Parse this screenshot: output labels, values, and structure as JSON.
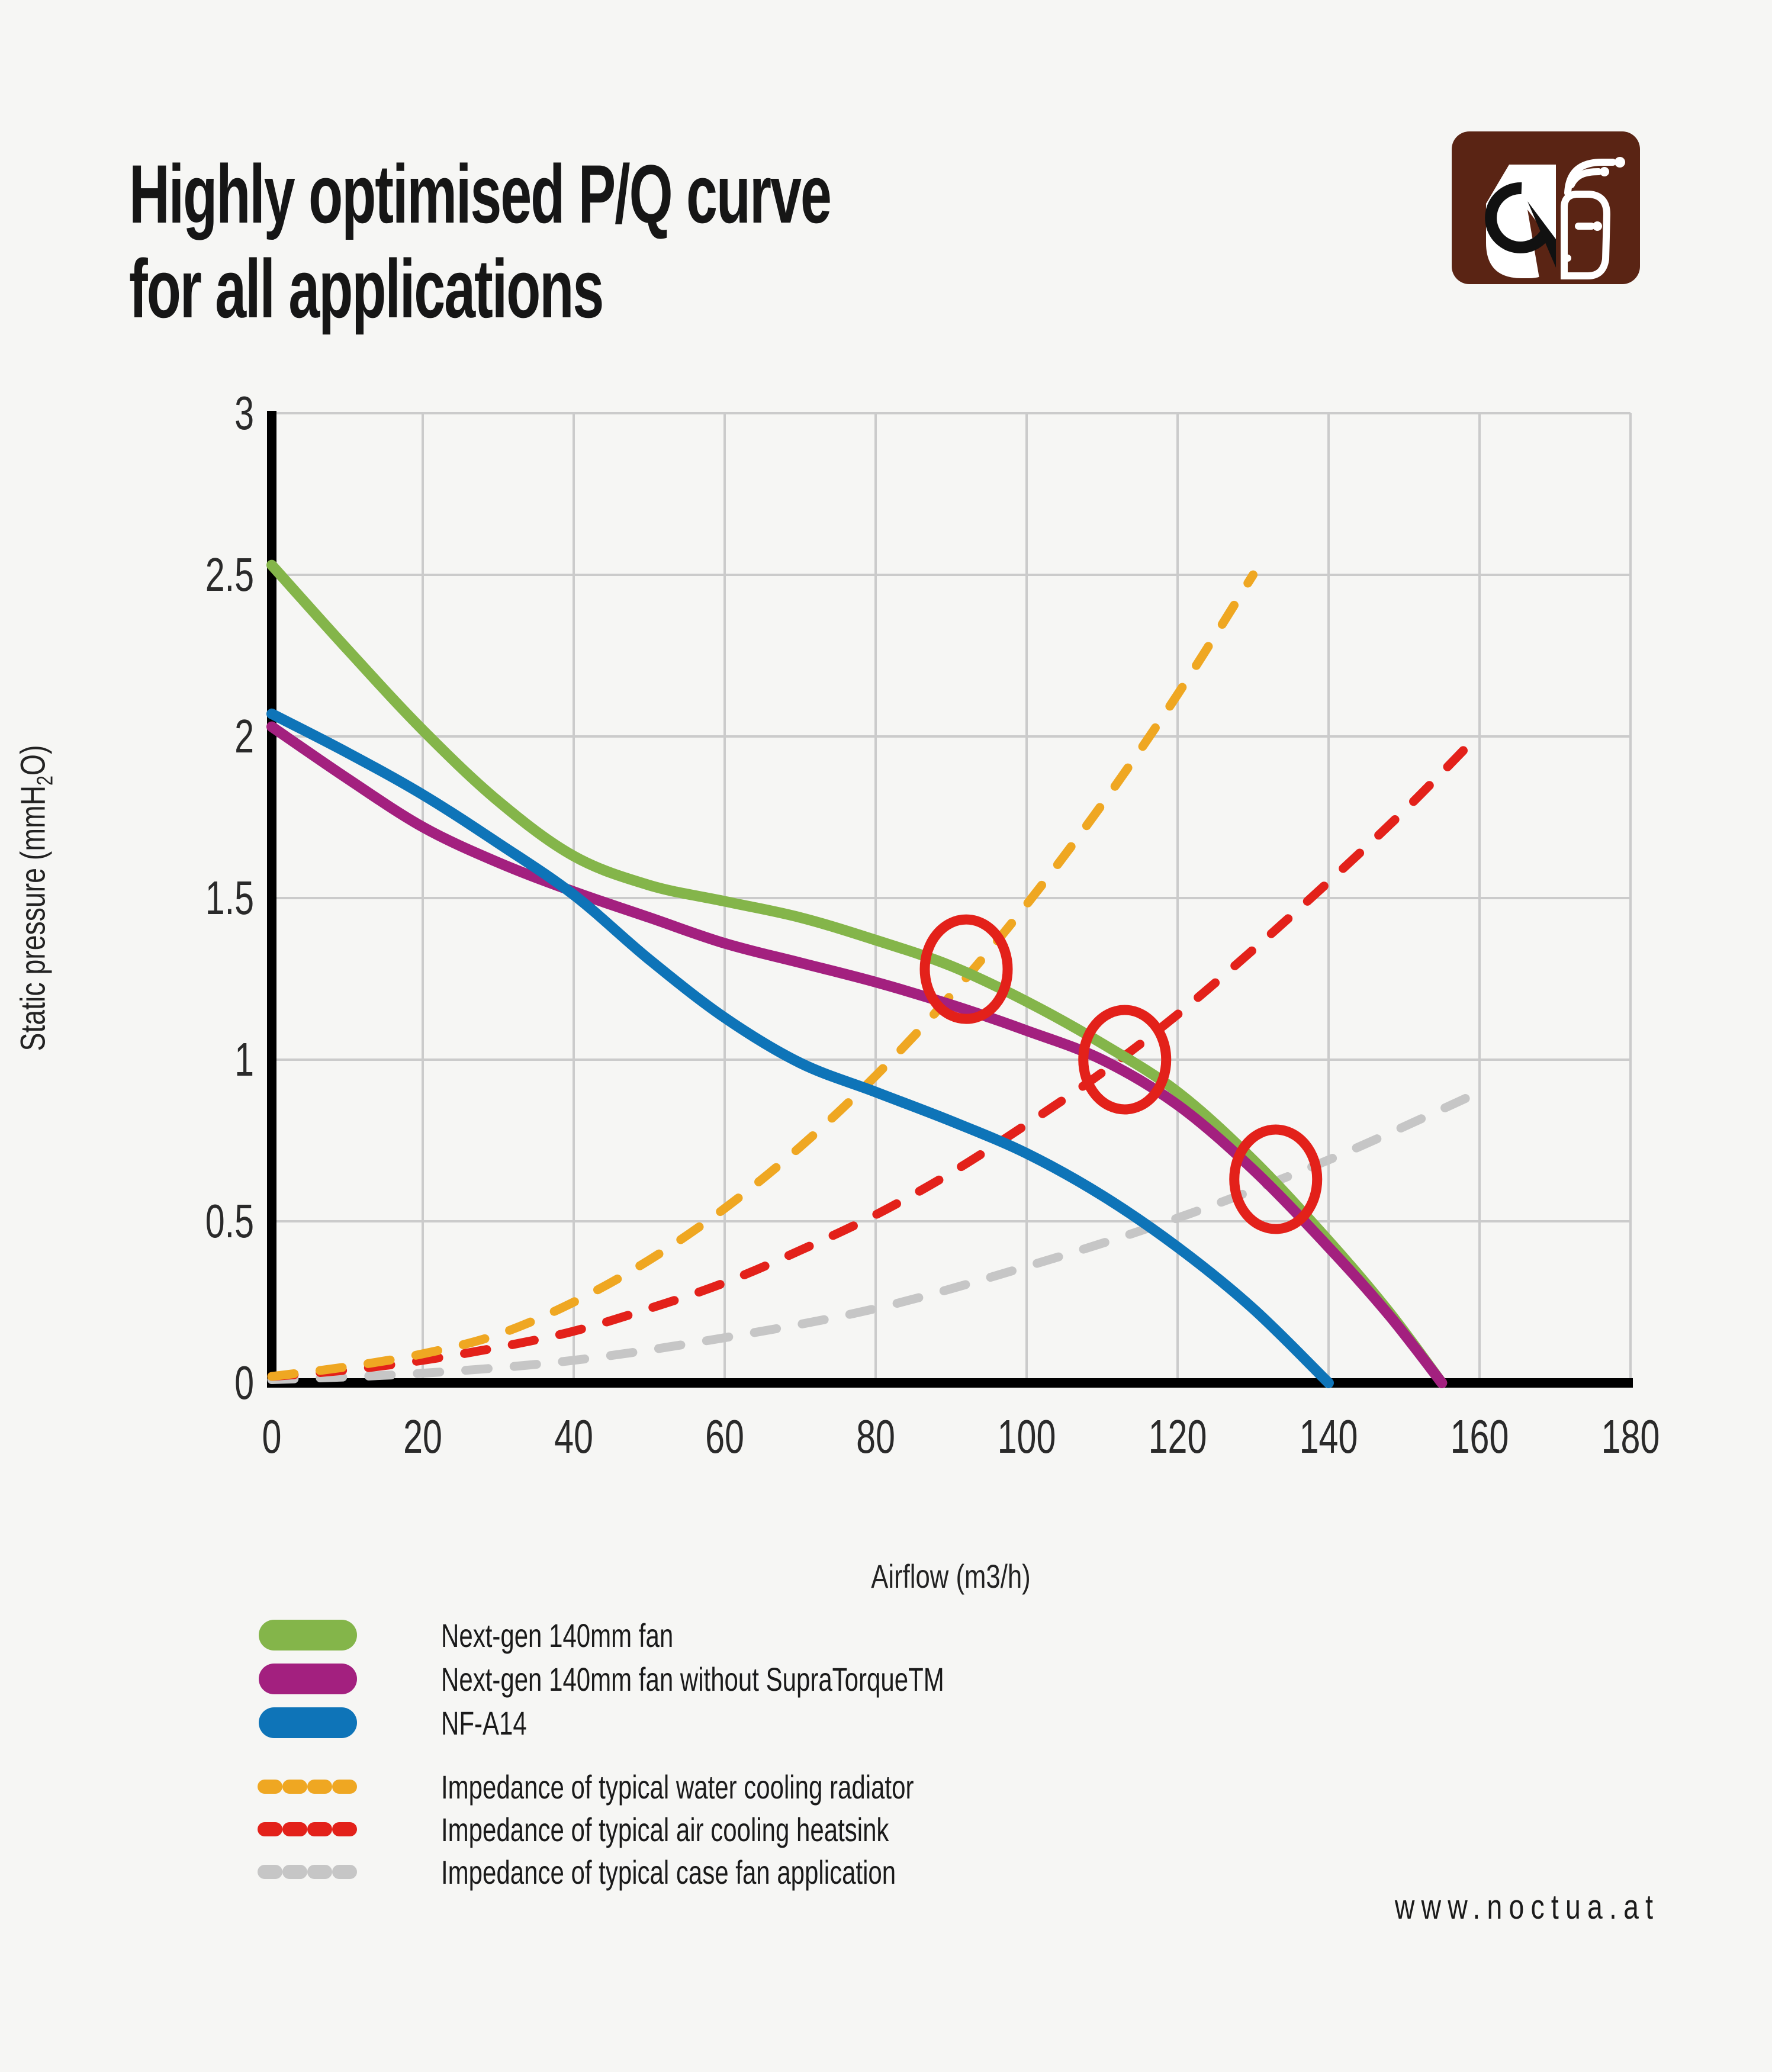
{
  "title": {
    "line1": "Highly optimised P/Q curve",
    "line2": "for all applications"
  },
  "logo": {
    "name": "noctua-owl-logo",
    "brown": "#5a2414"
  },
  "chart_data": {
    "type": "line",
    "title": "",
    "xlabel": "Airflow (m3/h)",
    "ylabel_pre": "Static pressure (mmH",
    "ylabel_sub": "2",
    "ylabel_post": "O)",
    "xlim": [
      0,
      180
    ],
    "ylim": [
      0,
      3
    ],
    "xticks": [
      0,
      20,
      40,
      60,
      80,
      100,
      120,
      140,
      160,
      180
    ],
    "yticks": [
      3,
      2.5,
      2,
      1.5,
      1,
      0.5,
      0
    ],
    "grid": true,
    "legend_position": "bottom-left",
    "axis_color": "#000000",
    "grid_color": "#cbcbcb",
    "series": [
      {
        "name": "Next-gen 140mm fan",
        "color": "#84b54a",
        "style": "solid",
        "points": [
          [
            0,
            2.53
          ],
          [
            10,
            2.27
          ],
          [
            20,
            2.02
          ],
          [
            30,
            1.8
          ],
          [
            40,
            1.63
          ],
          [
            50,
            1.54
          ],
          [
            60,
            1.49
          ],
          [
            70,
            1.44
          ],
          [
            80,
            1.37
          ],
          [
            90,
            1.29
          ],
          [
            100,
            1.18
          ],
          [
            110,
            1.05
          ],
          [
            120,
            0.9
          ],
          [
            130,
            0.69
          ],
          [
            140,
            0.44
          ],
          [
            148,
            0.22
          ],
          [
            155,
            0
          ]
        ]
      },
      {
        "name": "Next-gen 140mm fan without SupraTorqueTM",
        "color": "#a3207f",
        "style": "solid",
        "points": [
          [
            0,
            2.03
          ],
          [
            10,
            1.87
          ],
          [
            20,
            1.72
          ],
          [
            30,
            1.61
          ],
          [
            40,
            1.52
          ],
          [
            50,
            1.44
          ],
          [
            60,
            1.36
          ],
          [
            70,
            1.3
          ],
          [
            80,
            1.24
          ],
          [
            90,
            1.17
          ],
          [
            100,
            1.09
          ],
          [
            110,
            1.0
          ],
          [
            120,
            0.86
          ],
          [
            130,
            0.66
          ],
          [
            140,
            0.42
          ],
          [
            148,
            0.21
          ],
          [
            155,
            0
          ]
        ]
      },
      {
        "name": "NF-A14",
        "color": "#0e74b8",
        "style": "solid",
        "points": [
          [
            0,
            2.07
          ],
          [
            10,
            1.95
          ],
          [
            20,
            1.82
          ],
          [
            30,
            1.67
          ],
          [
            40,
            1.51
          ],
          [
            50,
            1.31
          ],
          [
            60,
            1.13
          ],
          [
            70,
            0.99
          ],
          [
            80,
            0.9
          ],
          [
            90,
            0.81
          ],
          [
            100,
            0.71
          ],
          [
            110,
            0.58
          ],
          [
            120,
            0.42
          ],
          [
            130,
            0.23
          ],
          [
            140,
            0
          ]
        ]
      },
      {
        "name": "Impedance of typical water cooling radiator",
        "color": "#efa722",
        "style": "dashed",
        "points": [
          [
            0,
            0.02
          ],
          [
            10,
            0.05
          ],
          [
            20,
            0.09
          ],
          [
            30,
            0.15
          ],
          [
            40,
            0.25
          ],
          [
            50,
            0.38
          ],
          [
            60,
            0.54
          ],
          [
            70,
            0.73
          ],
          [
            80,
            0.95
          ],
          [
            90,
            1.2
          ],
          [
            100,
            1.48
          ],
          [
            110,
            1.79
          ],
          [
            120,
            2.13
          ],
          [
            130,
            2.5
          ]
        ]
      },
      {
        "name": "Impedance of typical air cooling heatsink",
        "color": "#e3211a",
        "style": "dashed",
        "points": [
          [
            0,
            0.02
          ],
          [
            10,
            0.04
          ],
          [
            20,
            0.07
          ],
          [
            30,
            0.11
          ],
          [
            40,
            0.16
          ],
          [
            50,
            0.23
          ],
          [
            60,
            0.31
          ],
          [
            70,
            0.41
          ],
          [
            80,
            0.52
          ],
          [
            90,
            0.65
          ],
          [
            100,
            0.8
          ],
          [
            110,
            0.96
          ],
          [
            120,
            1.14
          ],
          [
            130,
            1.34
          ],
          [
            140,
            1.55
          ],
          [
            150,
            1.77
          ],
          [
            158,
            1.96
          ]
        ]
      },
      {
        "name": "Impedance of typical case fan application",
        "color": "#c6c6c6",
        "style": "dashed",
        "points": [
          [
            0,
            0.01
          ],
          [
            20,
            0.03
          ],
          [
            40,
            0.07
          ],
          [
            60,
            0.14
          ],
          [
            80,
            0.23
          ],
          [
            100,
            0.36
          ],
          [
            120,
            0.51
          ],
          [
            140,
            0.69
          ],
          [
            160,
            0.9
          ]
        ]
      }
    ],
    "markers": {
      "shape": "circle-outline",
      "color": "#e3211a",
      "points": [
        [
          92,
          1.28
        ],
        [
          113,
          1.0
        ],
        [
          133,
          0.63
        ]
      ]
    }
  },
  "footer": {
    "url": "www.noctua.at"
  }
}
